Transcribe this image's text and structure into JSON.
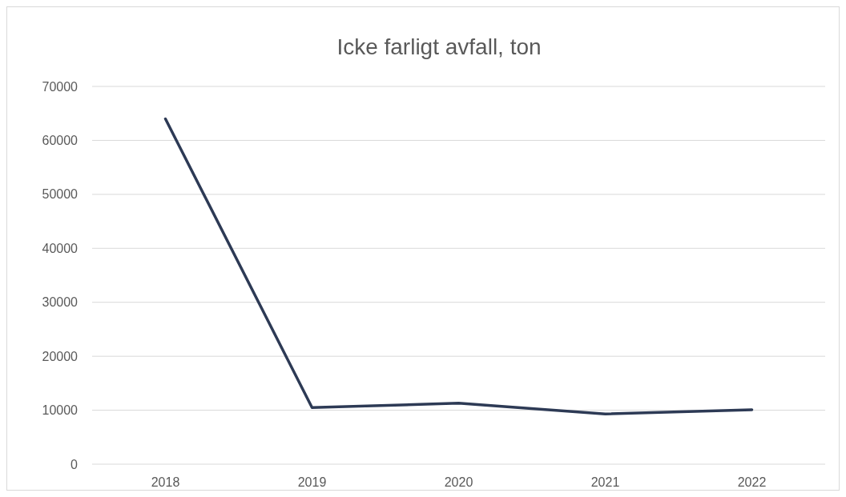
{
  "chart_data": {
    "type": "line",
    "title": "Icke farligt avfall, ton",
    "categories": [
      "2018",
      "2019",
      "2020",
      "2021",
      "2022"
    ],
    "series": [
      {
        "color": "#2d3a55",
        "values": [
          64000,
          10500,
          11300,
          9300,
          10100
        ]
      }
    ],
    "ylim": [
      0,
      70000
    ],
    "yticks": [
      0,
      10000,
      20000,
      30000,
      40000,
      50000,
      60000,
      70000
    ],
    "grid": "y",
    "legend": false,
    "marker": "none",
    "line_style": "solid"
  }
}
